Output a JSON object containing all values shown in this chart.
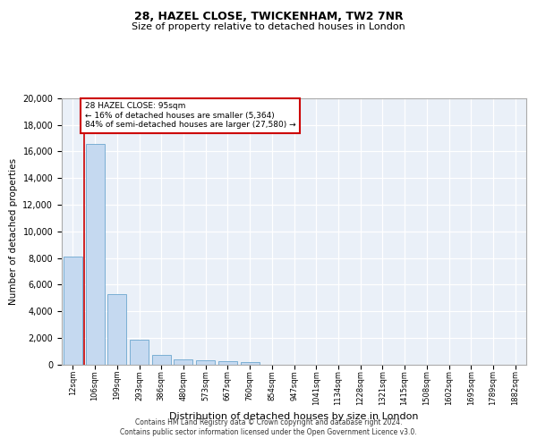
{
  "title": "28, HAZEL CLOSE, TWICKENHAM, TW2 7NR",
  "subtitle": "Size of property relative to detached houses in London",
  "xlabel": "Distribution of detached houses by size in London",
  "ylabel": "Number of detached properties",
  "categories": [
    "12sqm",
    "106sqm",
    "199sqm",
    "293sqm",
    "386sqm",
    "480sqm",
    "573sqm",
    "667sqm",
    "760sqm",
    "854sqm",
    "947sqm",
    "1041sqm",
    "1134sqm",
    "1228sqm",
    "1321sqm",
    "1415sqm",
    "1508sqm",
    "1602sqm",
    "1695sqm",
    "1789sqm",
    "1882sqm"
  ],
  "values": [
    8100,
    16600,
    5300,
    1850,
    700,
    350,
    270,
    220,
    180,
    0,
    0,
    0,
    0,
    0,
    0,
    0,
    0,
    0,
    0,
    0,
    0
  ],
  "bar_color": "#c5d9f0",
  "bar_edge_color": "#7bafd4",
  "vline_color": "#cc0000",
  "annotation_text": "28 HAZEL CLOSE: 95sqm\n← 16% of detached houses are smaller (5,364)\n84% of semi-detached houses are larger (27,580) →",
  "annotation_box_facecolor": "#ffffff",
  "annotation_box_edgecolor": "#cc0000",
  "ylim": [
    0,
    20000
  ],
  "yticks": [
    0,
    2000,
    4000,
    6000,
    8000,
    10000,
    12000,
    14000,
    16000,
    18000,
    20000
  ],
  "background_color": "#eaf0f8",
  "grid_color": "#ffffff",
  "title_fontsize": 9,
  "subtitle_fontsize": 8,
  "footer_line1": "Contains HM Land Registry data © Crown copyright and database right 2024.",
  "footer_line2": "Contains public sector information licensed under the Open Government Licence v3.0."
}
